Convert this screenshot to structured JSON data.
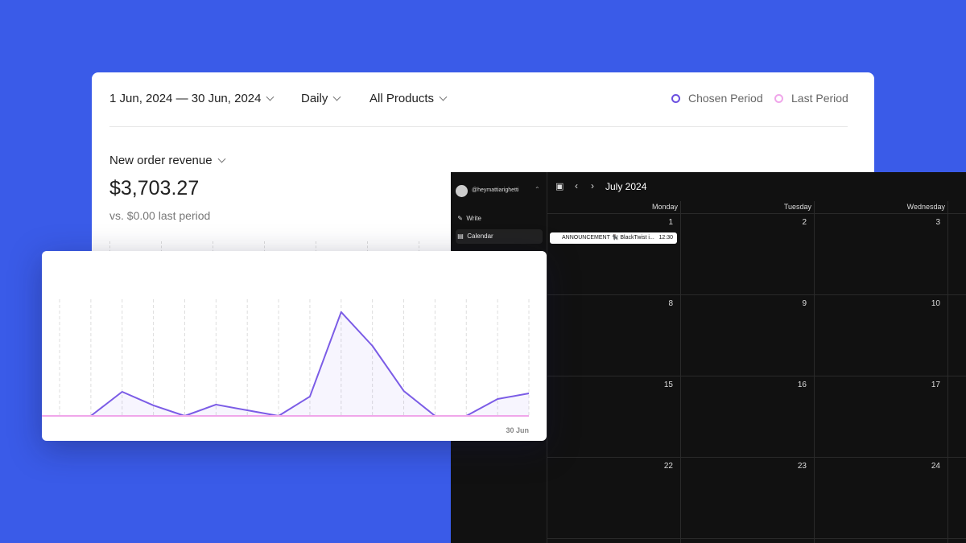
{
  "filters": {
    "date_range": "1 Jun, 2024 — 30 Jun, 2024",
    "granularity": "Daily",
    "product": "All Products"
  },
  "metric": {
    "title": "New order revenue",
    "value": "$3,703.27",
    "comparison": "vs. $0.00 last period"
  },
  "chart_data": {
    "type": "line",
    "categories": [
      null,
      null,
      null,
      null,
      null,
      null,
      null,
      null,
      null,
      null,
      null,
      null,
      null,
      null,
      null,
      "30 Jun"
    ],
    "series": [
      {
        "name": "Chosen Period",
        "color": "#7b5ce6",
        "values": [
          0,
          0,
          207,
          90,
          0,
          97,
          48,
          0,
          166,
          890,
          600,
          214,
          0,
          0,
          145,
          193
        ]
      },
      {
        "name": "Last Period",
        "color": "#f0a6ea",
        "values": [
          0,
          0,
          0,
          0,
          0,
          0,
          0,
          0,
          0,
          0,
          0,
          0,
          0,
          0,
          0,
          0
        ]
      }
    ],
    "ylim": [
      0,
      1000
    ],
    "grid": true
  },
  "calendar": {
    "account": "@heymattiarighetti",
    "nav": [
      "Write",
      "Calendar"
    ],
    "month": "July 2024",
    "weekdays": [
      "Monday",
      "Tuesday",
      "Wednesday"
    ],
    "dates": [
      [
        1,
        2,
        3
      ],
      [
        8,
        9,
        10
      ],
      [
        15,
        16,
        17
      ],
      [
        22,
        23,
        24
      ]
    ],
    "event": {
      "title": "ANNOUNCEMENT 🐈‍⬛ BlackTwist i...",
      "time": "12:30"
    }
  }
}
